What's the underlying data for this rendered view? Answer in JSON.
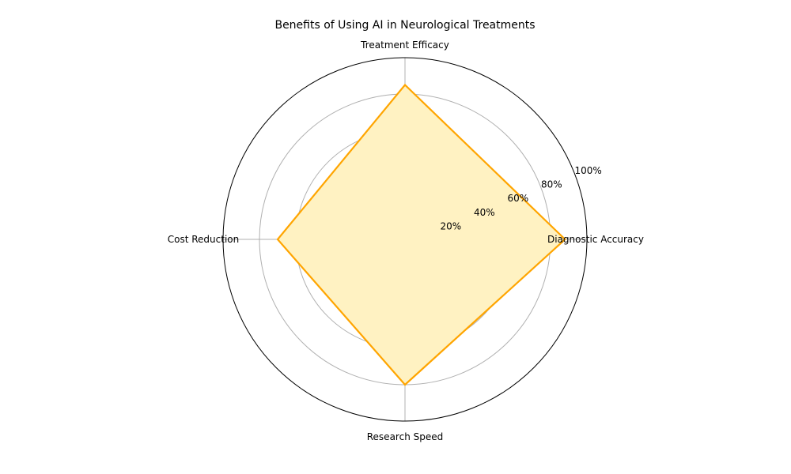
{
  "chart_data": {
    "type": "radar",
    "title": "Benefits of Using AI in Neurological Treatments",
    "categories": [
      "Diagnostic Accuracy",
      "Treatment Efficacy",
      "Cost Reduction",
      "Research Speed"
    ],
    "values": [
      88,
      85,
      70,
      80
    ],
    "rlim": [
      0,
      100
    ],
    "ticks": [
      20,
      40,
      60,
      80,
      100
    ],
    "tick_labels": [
      "20%",
      "40%",
      "60%",
      "80%",
      "100%"
    ],
    "grid": true,
    "colors": {
      "line": "#FFA500",
      "fill": "#FFF2C2",
      "grid": "#b0b0b0",
      "frame": "#000000"
    }
  }
}
